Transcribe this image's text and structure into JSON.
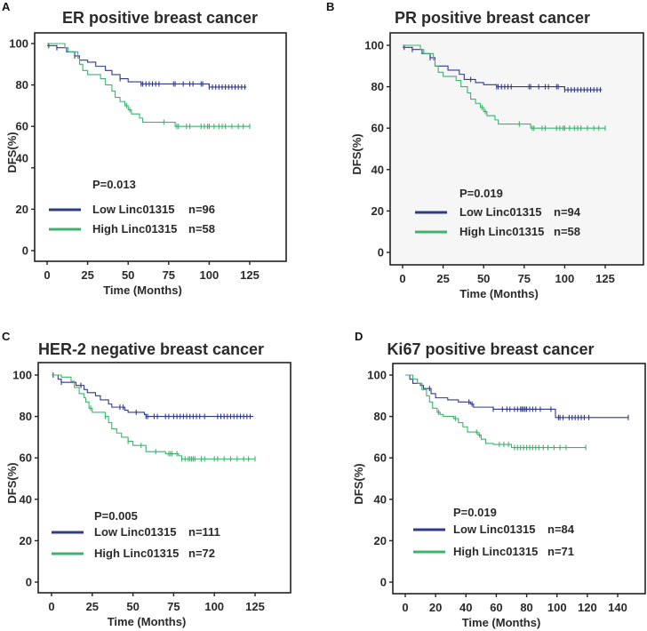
{
  "figure": {
    "colors": {
      "low": "#2f3a8f",
      "high": "#3cb46e",
      "text": "#2a2a2a",
      "frame": "#222222"
    }
  },
  "chart_data": [
    {
      "type": "line",
      "subtype": "kaplan-meier",
      "panel": "A",
      "title": "ER positive breast cancer",
      "xlabel": "Time (Months)",
      "ylabel": "DFS(%)",
      "xlim": [
        0,
        125
      ],
      "ylim": [
        0,
        100
      ],
      "xticks": [
        0,
        25,
        50,
        75,
        100,
        125
      ],
      "yticks": [
        0,
        20,
        40,
        60,
        80,
        100
      ],
      "grid": false,
      "legend_position": "bottom-left",
      "p_value": "P=0.013",
      "series": [
        {
          "name": "Low Linc01315",
          "n_label": "n=96",
          "color": "#2f3a8f",
          "steps": [
            [
              0,
              99
            ],
            [
              6,
              98
            ],
            [
              12,
              96
            ],
            [
              17,
              94
            ],
            [
              20,
              92
            ],
            [
              25,
              91
            ],
            [
              30,
              89
            ],
            [
              36,
              87
            ],
            [
              40,
              85
            ],
            [
              45,
              83
            ],
            [
              50,
              81.5
            ],
            [
              58,
              80.5
            ],
            [
              100,
              79
            ],
            [
              123,
              79
            ]
          ],
          "censored": [
            1,
            6,
            17,
            45,
            58,
            59,
            61,
            63,
            65,
            67,
            69,
            78,
            79,
            84,
            88,
            90,
            95,
            96,
            100,
            102,
            104,
            106,
            108,
            110,
            112,
            114,
            116,
            118,
            120,
            122
          ]
        },
        {
          "name": "High Linc01315",
          "n_label": "n=58",
          "color": "#3cb46e",
          "steps": [
            [
              0,
              100
            ],
            [
              11,
              98
            ],
            [
              13,
              96
            ],
            [
              19,
              93
            ],
            [
              20,
              90
            ],
            [
              22,
              87
            ],
            [
              25,
              85
            ],
            [
              33,
              83
            ],
            [
              36,
              80
            ],
            [
              40,
              77
            ],
            [
              42,
              74
            ],
            [
              45,
              72
            ],
            [
              48,
              70
            ],
            [
              50,
              68
            ],
            [
              52,
              66
            ],
            [
              57,
              64
            ],
            [
              59,
              62
            ],
            [
              79,
              60
            ],
            [
              125,
              60
            ]
          ],
          "censored": [
            49,
            51,
            72,
            80,
            81,
            86,
            88,
            95,
            97,
            99,
            100,
            103,
            106,
            108,
            110,
            114,
            118,
            121,
            125
          ]
        }
      ]
    },
    {
      "type": "line",
      "subtype": "kaplan-meier",
      "panel": "B",
      "title": "PR positive breast cancer",
      "xlabel": "Time (Months)",
      "ylabel": "DFS(%)",
      "xlim": [
        0,
        125
      ],
      "ylim": [
        0,
        100
      ],
      "xticks": [
        0,
        25,
        50,
        75,
        100,
        125
      ],
      "yticks": [
        0,
        20,
        40,
        60,
        80,
        100
      ],
      "grid": false,
      "legend_position": "bottom-left",
      "p_value": "P=0.019",
      "series": [
        {
          "name": "Low Linc01315",
          "n_label": "n=94",
          "color": "#2f3a8f",
          "steps": [
            [
              0,
              99
            ],
            [
              6,
              98
            ],
            [
              12,
              96
            ],
            [
              17,
              94
            ],
            [
              20,
              90
            ],
            [
              28,
              88
            ],
            [
              35,
              86
            ],
            [
              38,
              83.5
            ],
            [
              45,
              82
            ],
            [
              50,
              81
            ],
            [
              58,
              80
            ],
            [
              100,
              78.5
            ],
            [
              123,
              78.5
            ]
          ],
          "censored": [
            1,
            6,
            17,
            42,
            58,
            59,
            61,
            63,
            65,
            67,
            78,
            79,
            84,
            88,
            90,
            95,
            96,
            100,
            102,
            104,
            106,
            108,
            110,
            112,
            114,
            116,
            118,
            120,
            122
          ]
        },
        {
          "name": "High Linc01315",
          "n_label": "n=58",
          "color": "#3cb46e",
          "steps": [
            [
              0,
              100
            ],
            [
              11,
              98
            ],
            [
              13,
              96
            ],
            [
              19,
              93
            ],
            [
              20,
              90
            ],
            [
              22,
              87
            ],
            [
              25,
              85
            ],
            [
              33,
              83
            ],
            [
              36,
              80
            ],
            [
              40,
              77
            ],
            [
              42,
              74
            ],
            [
              45,
              72
            ],
            [
              48,
              70
            ],
            [
              50,
              68
            ],
            [
              52,
              66
            ],
            [
              57,
              64
            ],
            [
              59,
              62
            ],
            [
              79,
              60
            ],
            [
              125,
              60
            ]
          ],
          "censored": [
            49,
            51,
            72,
            80,
            81,
            86,
            88,
            95,
            97,
            99,
            100,
            103,
            106,
            108,
            110,
            114,
            118,
            121,
            125
          ]
        }
      ]
    },
    {
      "type": "line",
      "subtype": "kaplan-meier",
      "panel": "C",
      "title": "HER-2 negative breast cancer",
      "xlabel": "Time (Months)",
      "ylabel": "DFS(%)",
      "xlim": [
        0,
        125
      ],
      "ylim": [
        0,
        100
      ],
      "xticks": [
        0,
        25,
        50,
        75,
        100,
        125
      ],
      "yticks": [
        0,
        20,
        40,
        60,
        80,
        100
      ],
      "grid": false,
      "legend_position": "bottom-left",
      "p_value": "P=0.005",
      "series": [
        {
          "name": "Low Linc01315",
          "n_label": "n=111",
          "color": "#2f3a8f",
          "steps": [
            [
              0,
              100
            ],
            [
              4,
              98
            ],
            [
              6,
              96.5
            ],
            [
              15,
              95
            ],
            [
              20,
              93
            ],
            [
              22,
              91.5
            ],
            [
              27,
              90
            ],
            [
              30,
              88
            ],
            [
              35,
              86
            ],
            [
              37,
              84.5
            ],
            [
              45,
              83
            ],
            [
              47,
              82
            ],
            [
              57,
              81
            ],
            [
              58,
              80
            ],
            [
              124,
              80
            ]
          ],
          "censored": [
            1,
            6,
            18,
            42,
            44,
            52,
            58,
            59,
            63,
            65,
            70,
            72,
            75,
            77,
            79,
            81,
            83,
            85,
            87,
            89,
            91,
            94,
            102,
            104,
            106,
            108,
            110,
            112,
            114,
            116,
            118,
            120,
            122
          ]
        },
        {
          "name": "High Linc01315",
          "n_label": "n=72",
          "color": "#3cb46e",
          "steps": [
            [
              0,
              100
            ],
            [
              6,
              99
            ],
            [
              12,
              97
            ],
            [
              14,
              94
            ],
            [
              17,
              91
            ],
            [
              20,
              89
            ],
            [
              21,
              87
            ],
            [
              23,
              84
            ],
            [
              25,
              82
            ],
            [
              33,
              80
            ],
            [
              35,
              77
            ],
            [
              37,
              74
            ],
            [
              40,
              72
            ],
            [
              43,
              70
            ],
            [
              47,
              68
            ],
            [
              50,
              66
            ],
            [
              58,
              63
            ],
            [
              70,
              62
            ],
            [
              78,
              61
            ],
            [
              80,
              59.5
            ],
            [
              125,
              59.5
            ]
          ],
          "censored": [
            24,
            33,
            47,
            55,
            64,
            72,
            73,
            74,
            77,
            80,
            82,
            84,
            85,
            86,
            87,
            88,
            92,
            94,
            100,
            102,
            106,
            110,
            114,
            118,
            121,
            125
          ]
        }
      ]
    },
    {
      "type": "line",
      "subtype": "kaplan-meier",
      "panel": "D",
      "title": "Ki67 positive breast cancer",
      "xlabel": "Time (Months)",
      "ylabel": "DFS(%)",
      "xlim": [
        0,
        145
      ],
      "ylim": [
        0,
        100
      ],
      "xticks": [
        0,
        20,
        40,
        60,
        80,
        100,
        120,
        140
      ],
      "yticks": [
        0,
        20,
        40,
        60,
        80,
        100
      ],
      "grid": false,
      "legend_position": "bottom-left",
      "p_value": "P=0.019",
      "series": [
        {
          "name": "Low Linc01315",
          "n_label": "n=84",
          "color": "#2f3a8f",
          "steps": [
            [
              0,
              100
            ],
            [
              3,
              98
            ],
            [
              5,
              96
            ],
            [
              10,
              95
            ],
            [
              12,
              93.5
            ],
            [
              17,
              91
            ],
            [
              20,
              89
            ],
            [
              28,
              88
            ],
            [
              35,
              87
            ],
            [
              43,
              86
            ],
            [
              45,
              84.5
            ],
            [
              58,
              83.5
            ],
            [
              99,
              79.5
            ],
            [
              147,
              79.5
            ]
          ],
          "censored": [
            16,
            42,
            44,
            58,
            64,
            67,
            69,
            72,
            74,
            76,
            77,
            78,
            79,
            80,
            82,
            84,
            86,
            89,
            96,
            101,
            102,
            104,
            108,
            110,
            112,
            114,
            116,
            118,
            121,
            147
          ]
        },
        {
          "name": "High Linc01315",
          "n_label": "n=71",
          "color": "#3cb46e",
          "steps": [
            [
              0,
              100
            ],
            [
              5,
              98
            ],
            [
              8,
              96
            ],
            [
              11,
              93
            ],
            [
              14,
              90
            ],
            [
              16,
              87
            ],
            [
              18,
              84
            ],
            [
              21,
              82
            ],
            [
              23,
              81
            ],
            [
              25,
              80
            ],
            [
              32,
              79
            ],
            [
              35,
              77
            ],
            [
              38,
              75
            ],
            [
              41,
              72.5
            ],
            [
              48,
              71
            ],
            [
              50,
              69
            ],
            [
              53,
              67
            ],
            [
              58,
              66.5
            ],
            [
              70,
              65
            ],
            [
              119,
              65
            ]
          ],
          "censored": [
            22,
            33,
            47,
            49,
            62,
            65,
            68,
            72,
            74,
            76,
            78,
            80,
            82,
            84,
            86,
            88,
            91,
            94,
            98,
            102,
            106,
            119
          ]
        }
      ]
    }
  ]
}
